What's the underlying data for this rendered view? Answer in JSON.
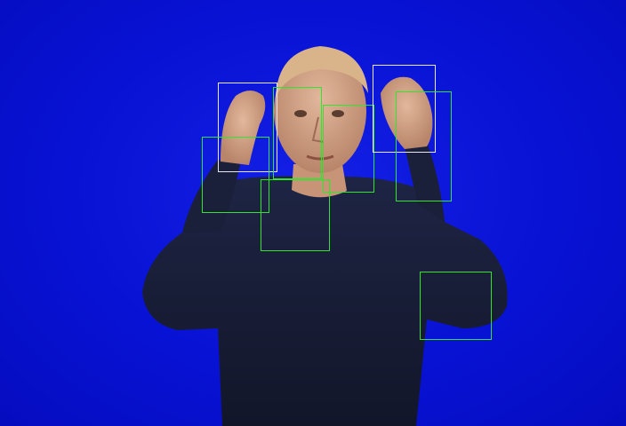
{
  "scene": {
    "background_color": "#0a14d8",
    "subject_shirt_color": "#1a1f3a",
    "subject_skin_color": "#d4a68a",
    "subject_hair_color": "#d9b48a"
  },
  "detections": {
    "box_colors": {
      "green": "#2ee62e",
      "white": "#e8e8f0"
    }
  }
}
